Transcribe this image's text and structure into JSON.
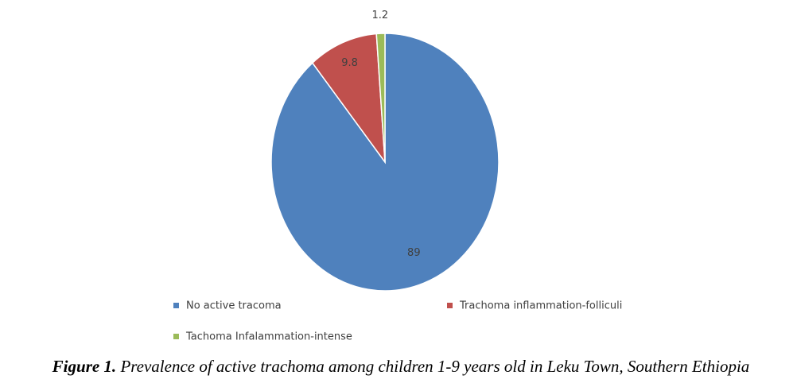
{
  "chart_data": {
    "type": "pie",
    "categories": [
      "No active tracoma",
      "Trachoma inflammation-folliculi",
      "Tachoma Infalammation-intense"
    ],
    "values": [
      89,
      9.8,
      1.2
    ],
    "colors": [
      "#4f81bd",
      "#c0504d",
      "#9bbb59"
    ],
    "caption_label": "Figure 1.",
    "caption": "Prevalence of active trachoma among children 1-9 years old in Leku Town, Southern Ethiopia"
  }
}
